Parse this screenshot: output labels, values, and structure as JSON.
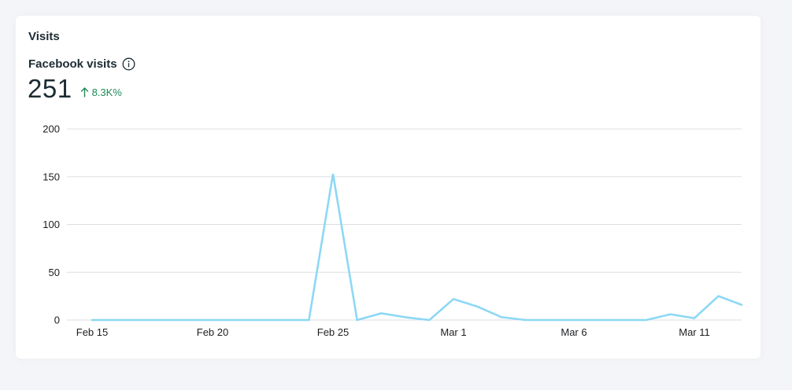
{
  "section": {
    "title": "Visits"
  },
  "metric": {
    "title": "Facebook visits",
    "info_icon": "info-icon",
    "value": "251",
    "delta": "8.3K%",
    "delta_icon": "arrow-up-icon",
    "delta_color": "#1e8a5a"
  },
  "chart_data": {
    "type": "line",
    "title": "",
    "xlabel": "",
    "ylabel": "",
    "ylim": [
      0,
      200
    ],
    "y_ticks": [
      "0",
      "50",
      "100",
      "150",
      "200"
    ],
    "x_ticks": [
      {
        "label": "Feb 15",
        "date": "2024-02-15"
      },
      {
        "label": "Feb 20",
        "date": "2024-02-20"
      },
      {
        "label": "Feb 25",
        "date": "2024-02-25"
      },
      {
        "label": "Mar 1",
        "date": "2024-03-01"
      },
      {
        "label": "Mar 6",
        "date": "2024-03-06"
      },
      {
        "label": "Mar 11",
        "date": "2024-03-11"
      }
    ],
    "grid": true,
    "line_color": "#8dd8f5",
    "series": [
      {
        "x": [
          "2024-02-15",
          "2024-02-16",
          "2024-02-17",
          "2024-02-18",
          "2024-02-19",
          "2024-02-20",
          "2024-02-21",
          "2024-02-22",
          "2024-02-23",
          "2024-02-24",
          "2024-02-25",
          "2024-02-26",
          "2024-02-27",
          "2024-02-28",
          "2024-02-29",
          "2024-03-01",
          "2024-03-02",
          "2024-03-03",
          "2024-03-04",
          "2024-03-05",
          "2024-03-06",
          "2024-03-07",
          "2024-03-08",
          "2024-03-09",
          "2024-03-10",
          "2024-03-11",
          "2024-03-12",
          "2024-03-13"
        ],
        "values": [
          0,
          0,
          0,
          0,
          0,
          0,
          0,
          0,
          0,
          0,
          153,
          0,
          7,
          3,
          0,
          22,
          14,
          3,
          0,
          0,
          0,
          0,
          0,
          0,
          6,
          2,
          25,
          16
        ]
      }
    ]
  }
}
